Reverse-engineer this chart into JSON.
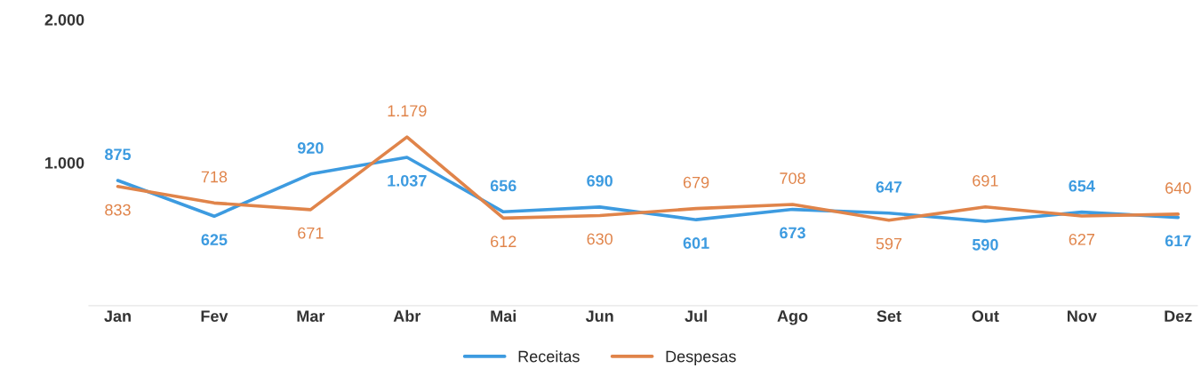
{
  "chart_data": {
    "type": "line",
    "categories": [
      "Jan",
      "Fev",
      "Mar",
      "Abr",
      "Mai",
      "Jun",
      "Jul",
      "Ago",
      "Set",
      "Out",
      "Nov",
      "Dez"
    ],
    "series": [
      {
        "name": "Receitas",
        "color": "#3d9be0",
        "values": [
          875,
          625,
          920,
          1037,
          656,
          690,
          601,
          673,
          647,
          590,
          654,
          617
        ],
        "value_labels": [
          "875",
          "625",
          "920",
          "1.037",
          "656",
          "690",
          "601",
          "673",
          "647",
          "590",
          "654",
          "617"
        ]
      },
      {
        "name": "Despesas",
        "color": "#e0844a",
        "values": [
          833,
          718,
          671,
          1179,
          612,
          630,
          679,
          708,
          597,
          691,
          627,
          640
        ],
        "value_labels": [
          "833",
          "718",
          "671",
          "1.179",
          "612",
          "630",
          "679",
          "708",
          "597",
          "691",
          "627",
          "640"
        ]
      }
    ],
    "ylim": [
      0,
      2000
    ],
    "yticks": [
      {
        "value": 1000,
        "label": "1.000"
      },
      {
        "value": 2000,
        "label": "2.000"
      }
    ],
    "legend": "bottom",
    "marker": "none",
    "line_style": "solid"
  }
}
